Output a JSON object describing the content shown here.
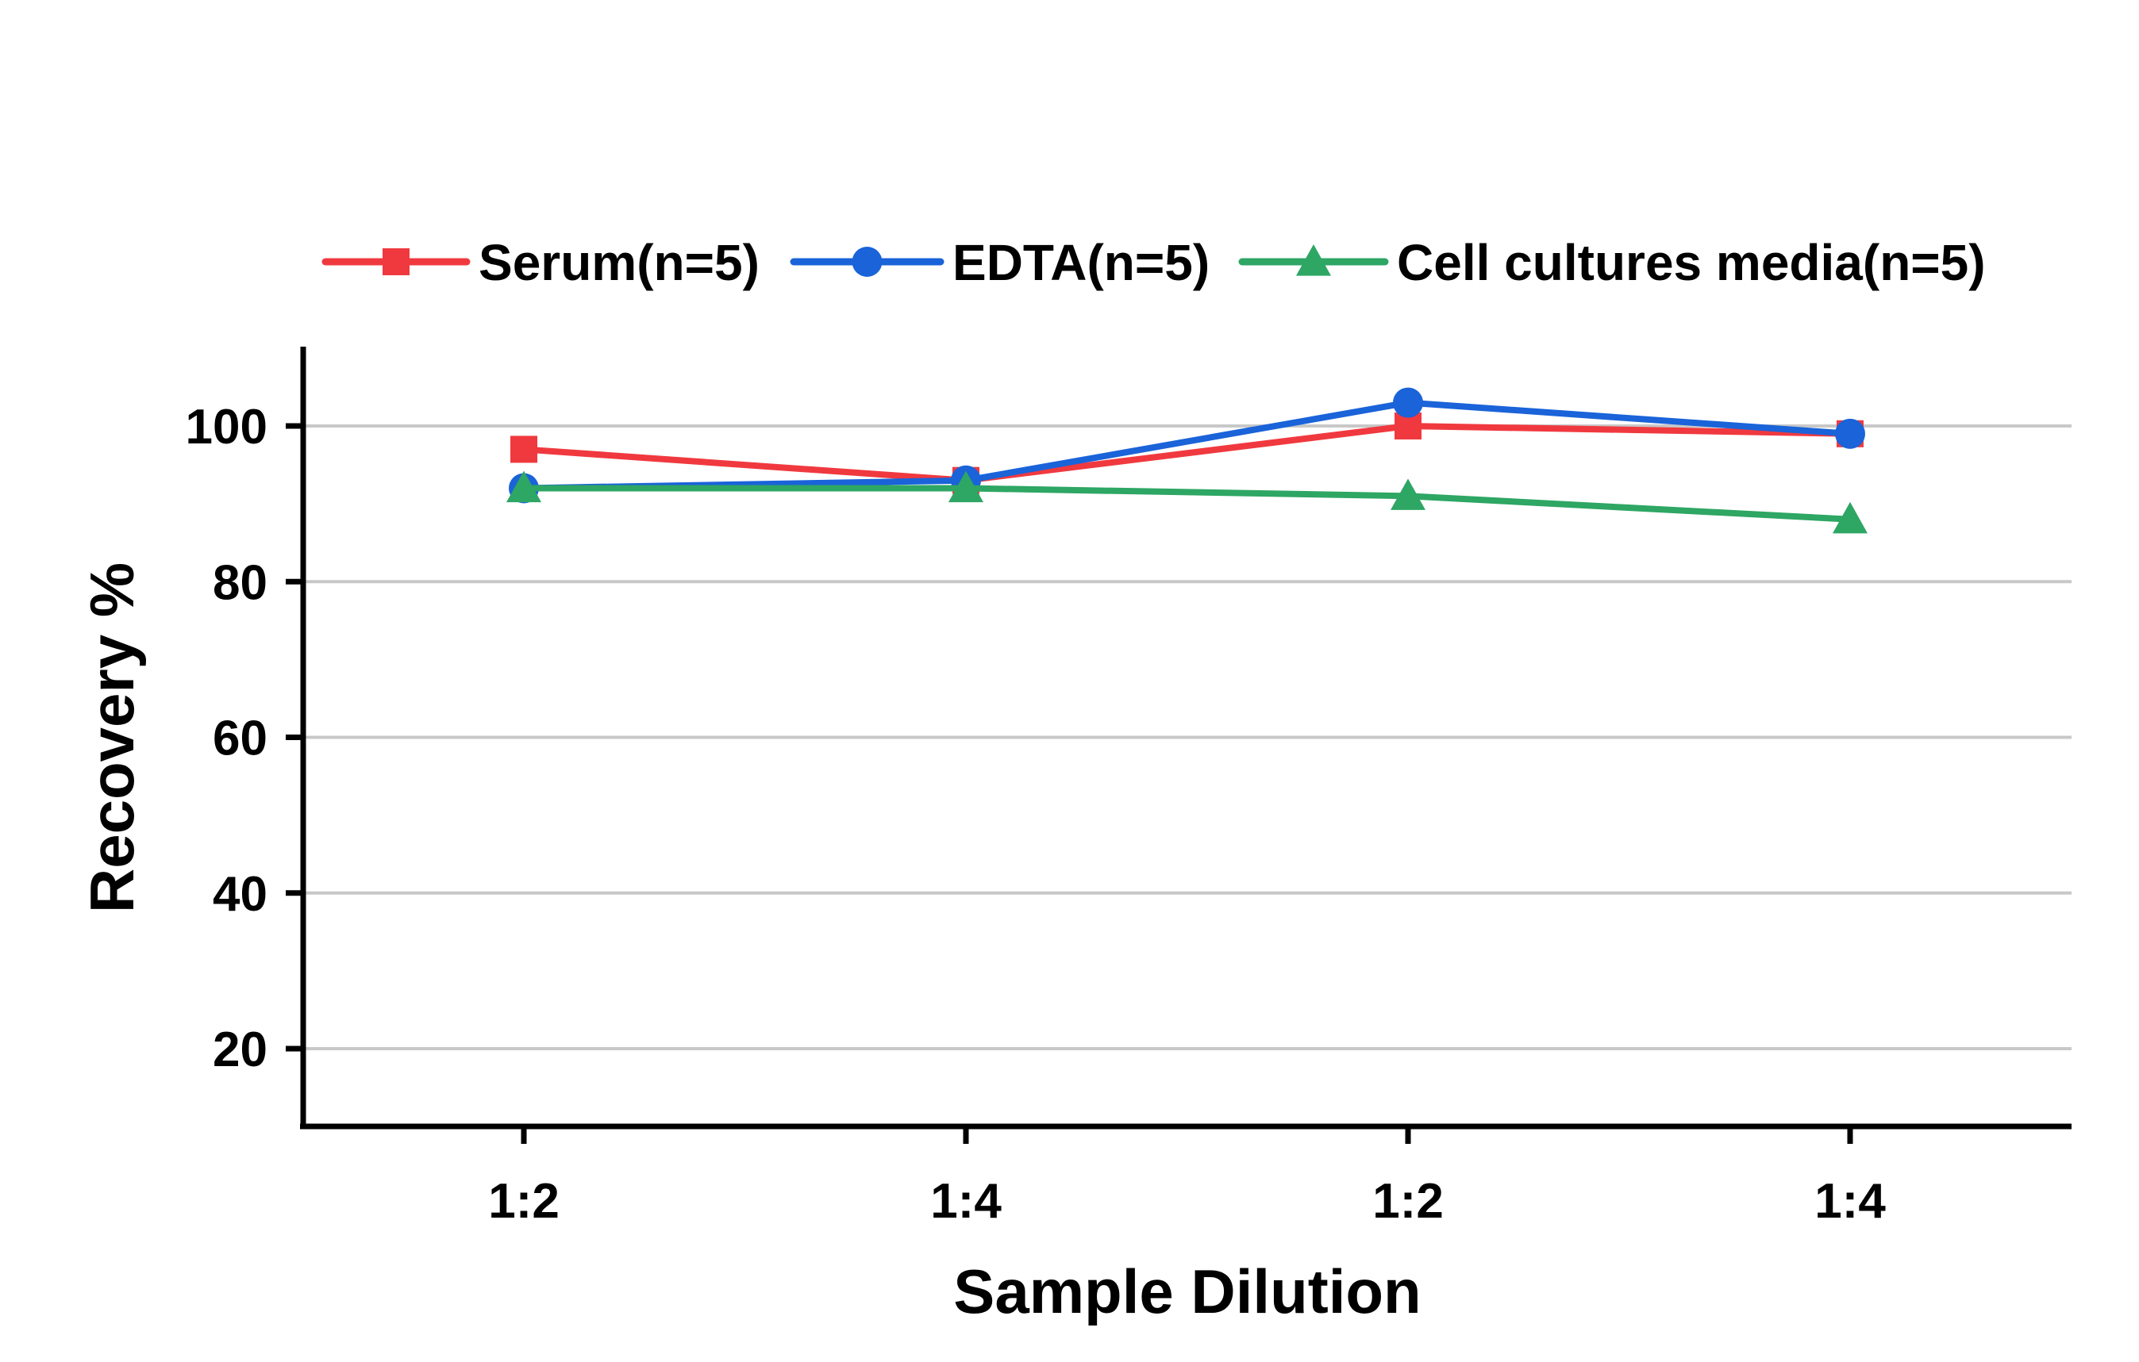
{
  "chart_data": {
    "type": "line",
    "title": "",
    "xlabel": "Sample Dilution",
    "ylabel": "Recovery %",
    "categories": [
      "1:2",
      "1:4",
      "1:2",
      "1:4"
    ],
    "ylim": [
      10,
      110
    ],
    "yticks": [
      20,
      40,
      60,
      80,
      100
    ],
    "grid": true,
    "legend_position": "top",
    "series": [
      {
        "name": "Serum(n=5)",
        "values": [
          97,
          93,
          100,
          99
        ],
        "color": "#f0393f",
        "marker": "square"
      },
      {
        "name": "EDTA(n=5)",
        "values": [
          92,
          93,
          103,
          99
        ],
        "color": "#1a63d9",
        "marker": "circle"
      },
      {
        "name": "Cell cultures media(n=5)",
        "values": [
          92,
          92,
          91,
          88
        ],
        "color": "#2ea664",
        "marker": "triangle"
      }
    ]
  }
}
